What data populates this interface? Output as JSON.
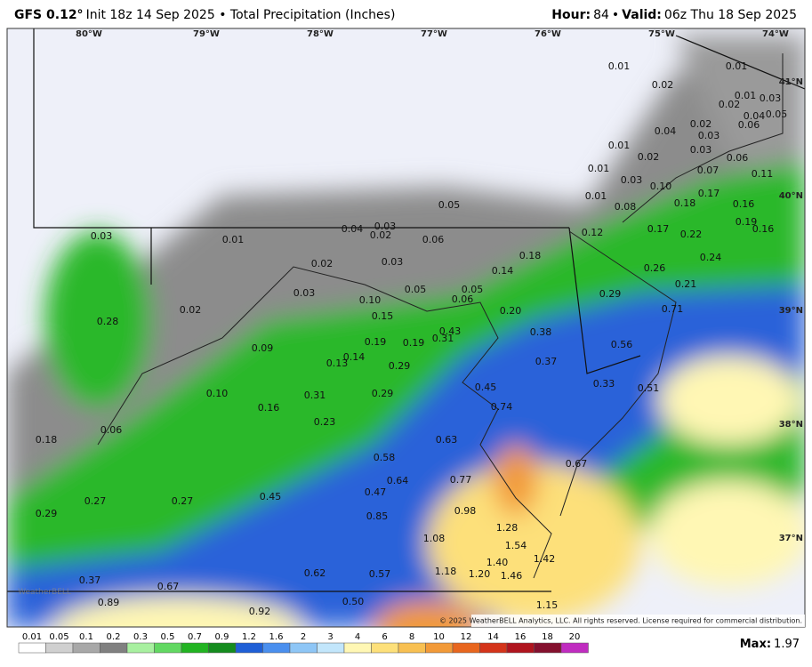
{
  "header": {
    "model": "GFS 0.12°",
    "description": "Init 18z 14 Sep 2025 • Total Precipitation (Inches)",
    "hour_label": "Hour:",
    "hour": "84",
    "separator": "•",
    "valid_label": "Valid:",
    "valid": "06z Thu 18 Sep 2025"
  },
  "longitudes": [
    "80°W",
    "79°W",
    "78°W",
    "77°W",
    "76°W",
    "75°W",
    "74°W"
  ],
  "latitudes": [
    "41°N",
    "40°N",
    "39°N",
    "38°N",
    "37°N"
  ],
  "map_values": [
    "0.01",
    "0.01",
    "0.02",
    "0.01",
    "0.03",
    "0.02",
    "0.04",
    "0.05",
    "0.02",
    "0.04",
    "0.03",
    "0.06",
    "0.01",
    "0.03",
    "0.02",
    "0.06",
    "0.01",
    "0.07",
    "0.11",
    "0.03",
    "0.10",
    "0.17",
    "0.01",
    "0.05",
    "0.18",
    "0.16",
    "0.08",
    "0.03",
    "0.04",
    "0.19",
    "0.16",
    "0.03",
    "0.01",
    "0.02",
    "0.06",
    "0.17",
    "0.22",
    "0.12",
    "0.02",
    "0.03",
    "0.18",
    "0.14",
    "0.24",
    "0.26",
    "0.03",
    "0.05",
    "0.05",
    "0.06",
    "0.21",
    "0.29",
    "0.10",
    "0.20",
    "0.71",
    "0.02",
    "0.15",
    "0.28",
    "0.43",
    "0.38",
    "0.56",
    "0.19",
    "0.19",
    "0.31",
    "0.09",
    "0.14",
    "0.13",
    "0.37",
    "0.29",
    "0.45",
    "0.33",
    "0.51",
    "0.10",
    "0.31",
    "0.29",
    "0.16",
    "0.74",
    "0.23",
    "0.06",
    "0.18",
    "0.63",
    "0.58",
    "0.67",
    "0.64",
    "0.77",
    "0.47",
    "0.45",
    "0.27",
    "0.27",
    "0.98",
    "0.29",
    "0.85",
    "1.28",
    "1.08",
    "1.54",
    "1.42",
    "1.40",
    "1.18",
    "1.20",
    "1.46",
    "0.62",
    "0.57",
    "0.37",
    "0.67",
    "0.50",
    "0.89",
    "0.92",
    "1.15"
  ],
  "watermark": "WeatherBELL",
  "copyright": "© 2025 WeatherBELL Analytics, LLC. All rights reserved. License required for commercial distribution.",
  "colorbar": {
    "labels": [
      "0.01",
      "0.05",
      "0.1",
      "0.2",
      "0.3",
      "0.5",
      "0.7",
      "0.9",
      "1.2",
      "1.6",
      "2",
      "3",
      "4",
      "6",
      "8",
      "10",
      "12",
      "14",
      "16",
      "18",
      "20"
    ],
    "colors": [
      "#ffffff",
      "#d0d0d0",
      "#a8a8a8",
      "#808080",
      "#a8f0a0",
      "#62d862",
      "#22b422",
      "#148c1e",
      "#1f5fd6",
      "#4a8fee",
      "#8ec6f6",
      "#c2e6fb",
      "#fff7b4",
      "#fde07a",
      "#f8c052",
      "#f29a38",
      "#e8661e",
      "#d4341a",
      "#b0141e",
      "#84102e",
      "#c02cc0"
    ]
  },
  "footer": {
    "max_label": "Max:",
    "max": "1.97"
  }
}
